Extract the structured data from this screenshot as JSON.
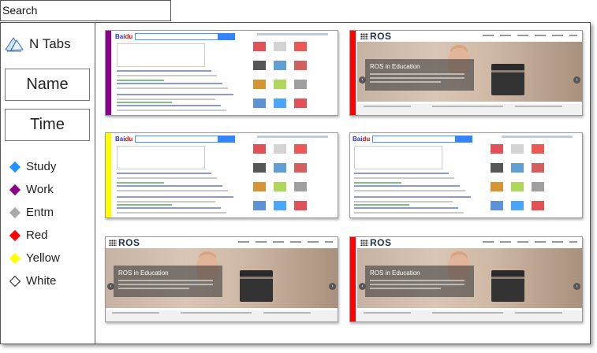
{
  "search": {
    "placeholder": "Search"
  },
  "sidebar": {
    "title": "N Tabs",
    "sort_name": "Name",
    "sort_time": "Time",
    "legend": [
      {
        "label": "Study",
        "color": "#1e90ff"
      },
      {
        "label": "Work",
        "color": "#8b008b"
      },
      {
        "label": "Entm",
        "color": "#a9a9a9"
      },
      {
        "label": "Red",
        "color": "#ff0000"
      },
      {
        "label": "Yellow",
        "color": "#ffff00"
      },
      {
        "label": "White",
        "color": "#ffffff"
      }
    ]
  },
  "thumbnails": [
    {
      "kind": "baidu",
      "tag_color": "#8b008b"
    },
    {
      "kind": "ros",
      "tag_color": "#ff0000",
      "heading": "ROS in Education"
    },
    {
      "kind": "baidu",
      "tag_color": "#ffff00"
    },
    {
      "kind": "baidu",
      "tag_color": "#ffffff"
    },
    {
      "kind": "ros",
      "tag_color": "#ffffff",
      "heading": "ROS in Education"
    },
    {
      "kind": "ros",
      "tag_color": "#ff0000",
      "heading": "ROS in Education"
    }
  ]
}
